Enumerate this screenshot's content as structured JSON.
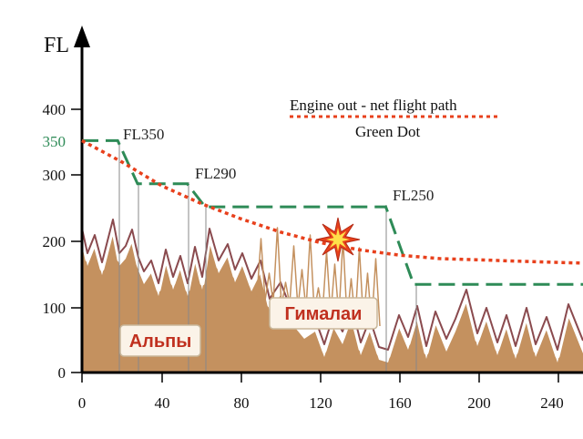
{
  "axis": {
    "y_title": "FL",
    "y_ticks": [
      "0",
      "100",
      "200",
      "300",
      "350",
      "400"
    ],
    "x_ticks": [
      "0",
      "40",
      "80",
      "120",
      "160",
      "200",
      "240"
    ]
  },
  "flight_levels": {
    "fl350": "FL350",
    "fl290": "FL290",
    "fl250": "FL250"
  },
  "legend": {
    "engine_out": "Engine out - net flight path",
    "green_dot": "Green Dot"
  },
  "regions": {
    "alps": "Альпы",
    "himalaya": "Гималаи"
  },
  "colors": {
    "terrain_fill": "#c4915f",
    "terrain_outline": "#8a4a4e",
    "green_dot_path": "#2e8b57",
    "engine_out_path": "#e8401c",
    "accent_350": "#2e8b57",
    "star_outer": "#e8401c",
    "star_inner": "#ffe14a"
  },
  "chart_data": {
    "type": "line",
    "x_ticks": [
      0,
      40,
      80,
      120,
      160,
      200,
      240
    ],
    "y_ticks": [
      0,
      100,
      200,
      300,
      350,
      400
    ],
    "ylim": [
      0,
      430
    ],
    "series": [
      {
        "name": "Engine out - net flight path",
        "x": [
          0,
          20,
          40,
          60,
          80,
          100,
          120,
          140,
          160,
          180,
          200,
          220,
          240,
          255
        ],
        "y": [
          350,
          318,
          282,
          255,
          232,
          212,
          196,
          185,
          177,
          172,
          170,
          168,
          166,
          165
        ]
      },
      {
        "name": "Green Dot",
        "x": [
          0,
          18,
          28,
          53,
          62,
          153,
          167,
          255
        ],
        "y": [
          350,
          350,
          285,
          285,
          250,
          250,
          133,
          133
        ]
      }
    ]
  }
}
